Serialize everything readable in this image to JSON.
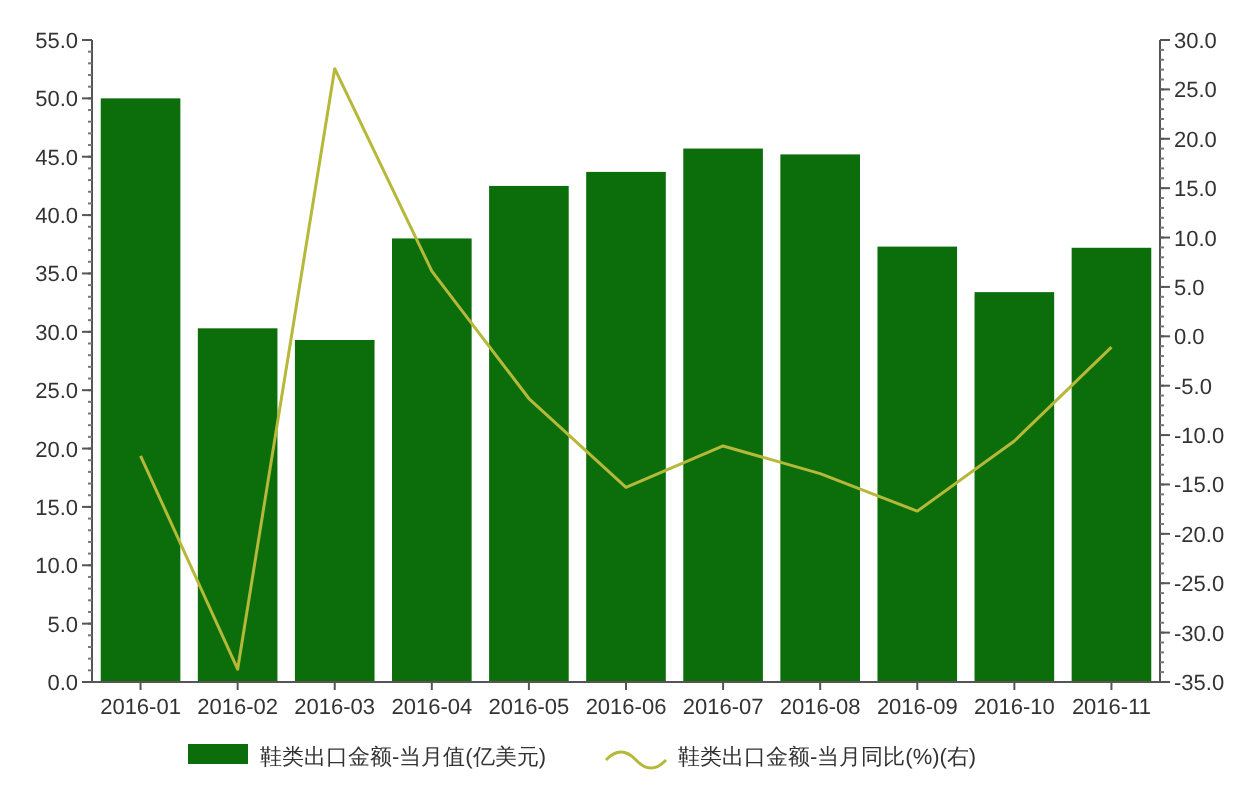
{
  "chart_data": {
    "type": "bar",
    "categories": [
      "2016-01",
      "2016-02",
      "2016-03",
      "2016-04",
      "2016-05",
      "2016-06",
      "2016-07",
      "2016-08",
      "2016-09",
      "2016-10",
      "2016-11"
    ],
    "series": [
      {
        "name": "鞋类出口金额-当月值(亿美元)",
        "color": "#0b6e0b",
        "values": [
          50.0,
          30.3,
          29.3,
          38.0,
          42.5,
          43.7,
          45.7,
          45.2,
          37.3,
          33.4,
          37.2
        ]
      },
      {
        "name": "鞋类出口金额-当月同比(%)(右)",
        "type": "line",
        "axis": "y2",
        "color": "#b5b838",
        "values": [
          -12.1,
          -33.7,
          27.1,
          6.6,
          -6.3,
          -15.3,
          -11.1,
          -13.9,
          -17.7,
          -10.6,
          -1.1
        ]
      }
    ],
    "ylim": [
      0,
      55
    ],
    "yticks": [
      {
        "value": 0,
        "label": "0.0"
      },
      {
        "value": 5,
        "label": "5.0"
      },
      {
        "value": 10,
        "label": "10.0"
      },
      {
        "value": 15,
        "label": "15.0"
      },
      {
        "value": 20,
        "label": "20.0"
      },
      {
        "value": 25,
        "label": "25.0"
      },
      {
        "value": 30,
        "label": "30.0"
      },
      {
        "value": 35,
        "label": "35.0"
      },
      {
        "value": 40,
        "label": "40.0"
      },
      {
        "value": 45,
        "label": "45.0"
      },
      {
        "value": 50,
        "label": "50.0"
      },
      {
        "value": 55,
        "label": "55.0"
      }
    ],
    "y2lim": [
      -35,
      30
    ],
    "y2ticks": [
      {
        "value": -35,
        "label": "-35.0"
      },
      {
        "value": -30,
        "label": "-30.0"
      },
      {
        "value": -25,
        "label": "-25.0"
      },
      {
        "value": -20,
        "label": "-20.0"
      },
      {
        "value": -15,
        "label": "-15.0"
      },
      {
        "value": -10,
        "label": "-10.0"
      },
      {
        "value": -5,
        "label": "-5.0"
      },
      {
        "value": 0,
        "label": "0.0"
      },
      {
        "value": 5,
        "label": "5.0"
      },
      {
        "value": 10,
        "label": "10.0"
      },
      {
        "value": 15,
        "label": "15.0"
      },
      {
        "value": 20,
        "label": "20.0"
      },
      {
        "value": 25,
        "label": "25.0"
      },
      {
        "value": 30,
        "label": "30.0"
      }
    ],
    "legend": "bottom"
  }
}
